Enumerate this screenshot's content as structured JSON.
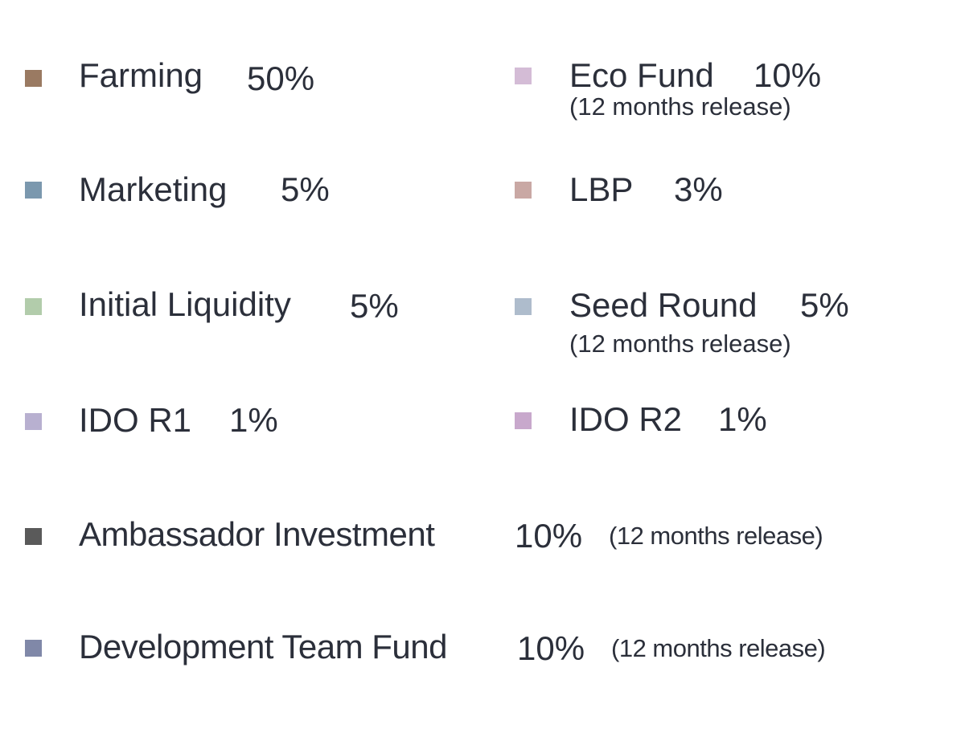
{
  "legend": {
    "items": [
      {
        "label": "Farming",
        "percent": "50%",
        "color": "#9a7a62"
      },
      {
        "label": "Eco Fund",
        "percent": "10%",
        "note": "(12 months release)",
        "color": "#d4bcd6"
      },
      {
        "label": "Marketing",
        "percent": "5%",
        "color": "#7b98ae"
      },
      {
        "label": "LBP",
        "percent": "3%",
        "color": "#c9a8a4"
      },
      {
        "label": "Initial Liquidity",
        "percent": "5%",
        "color": "#b2ccab"
      },
      {
        "label": "Seed Round",
        "percent": "5%",
        "note": "(12 months release)",
        "color": "#aebccc"
      },
      {
        "label": "IDO R1",
        "percent": "1%",
        "color": "#b8b0d0"
      },
      {
        "label": "IDO R2",
        "percent": "1%",
        "color": "#c8a8cc"
      },
      {
        "label": "Ambassador Investment",
        "percent": "10%",
        "note": "(12 months release)",
        "color": "#5a5a5a"
      },
      {
        "label": "Development Team Fund",
        "percent": "10%",
        "note": "(12 months release)",
        "color": "#8088a8"
      }
    ]
  }
}
